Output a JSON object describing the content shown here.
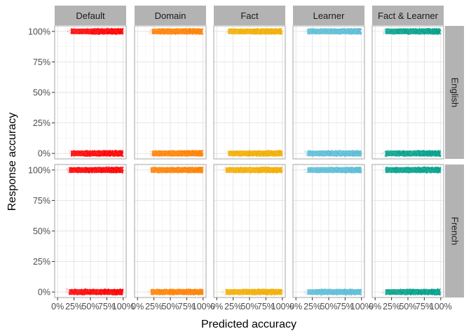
{
  "chart_data": {
    "type": "scatter",
    "facet_columns": [
      "Default",
      "Domain",
      "Fact",
      "Learner",
      "Fact & Learner"
    ],
    "facet_rows": [
      "English",
      "French"
    ],
    "xlabel": "Predicted accuracy",
    "ylabel": "Response accuracy",
    "xlim": [
      0,
      1
    ],
    "ylim": [
      0,
      1
    ],
    "x_ticks": [
      0,
      0.25,
      0.5,
      0.75,
      1
    ],
    "x_tick_labels": [
      "0%",
      "25%",
      "50%",
      "75%",
      "100%"
    ],
    "y_ticks": [
      0,
      0.25,
      0.5,
      0.75,
      1
    ],
    "y_tick_labels": [
      "0%",
      "25%",
      "50%",
      "75%",
      "100%"
    ],
    "grid": true,
    "legend": "none",
    "colors": {
      "Default": "#ff0000",
      "Domain": "#ff8000",
      "Fact": "#f2ad00",
      "Learner": "#5bbcd6",
      "Fact & Learner": "#00a08a"
    },
    "series": [
      {
        "row": "English",
        "column": "Default",
        "y": [
          0,
          1
        ],
        "x_range_correct": [
          0.15,
          1.0
        ],
        "x_range_incorrect": [
          0.15,
          1.0
        ]
      },
      {
        "row": "English",
        "column": "Domain",
        "y": [
          0,
          1
        ],
        "x_range_correct": [
          0.17,
          1.0
        ],
        "x_range_incorrect": [
          0.17,
          1.0
        ]
      },
      {
        "row": "English",
        "column": "Fact",
        "y": [
          0,
          1
        ],
        "x_range_correct": [
          0.12,
          1.0
        ],
        "x_range_incorrect": [
          0.12,
          1.0
        ]
      },
      {
        "row": "English",
        "column": "Learner",
        "y": [
          0,
          1
        ],
        "x_range_correct": [
          0.12,
          1.0
        ],
        "x_range_incorrect": [
          0.12,
          1.0
        ]
      },
      {
        "row": "English",
        "column": "Fact & Learner",
        "y": [
          0,
          1
        ],
        "x_range_correct": [
          0.1,
          1.0
        ],
        "x_range_incorrect": [
          0.1,
          1.0
        ]
      },
      {
        "row": "French",
        "column": "Default",
        "y": [
          0,
          1
        ],
        "x_range_correct": [
          0.12,
          1.0
        ],
        "x_range_incorrect": [
          0.12,
          1.0
        ]
      },
      {
        "row": "French",
        "column": "Domain",
        "y": [
          0,
          1
        ],
        "x_range_correct": [
          0.15,
          1.0
        ],
        "x_range_incorrect": [
          0.15,
          1.0
        ]
      },
      {
        "row": "French",
        "column": "Fact",
        "y": [
          0,
          1
        ],
        "x_range_correct": [
          0.08,
          1.0
        ],
        "x_range_incorrect": [
          0.08,
          1.0
        ]
      },
      {
        "row": "French",
        "column": "Learner",
        "y": [
          0,
          1
        ],
        "x_range_correct": [
          0.12,
          1.0
        ],
        "x_range_incorrect": [
          0.12,
          1.0
        ]
      },
      {
        "row": "French",
        "column": "Fact & Learner",
        "y": [
          0,
          1
        ],
        "x_range_correct": [
          0.1,
          1.0
        ],
        "x_range_incorrect": [
          0.1,
          1.0
        ]
      }
    ]
  }
}
